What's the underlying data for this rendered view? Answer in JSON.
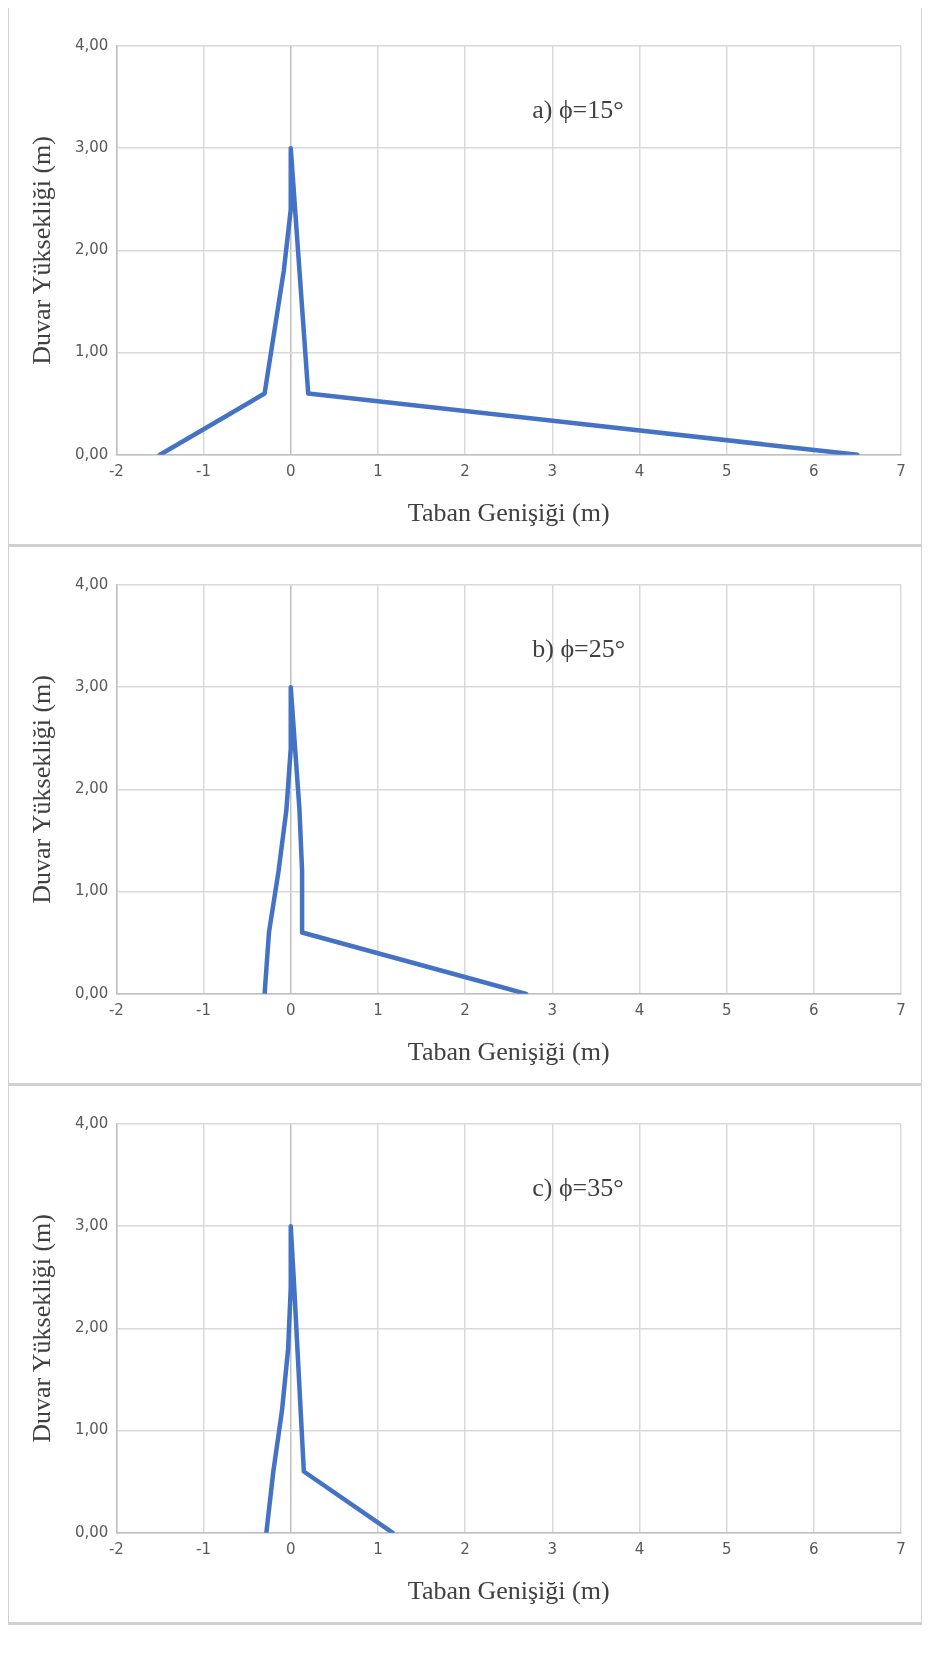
{
  "chart_data": [
    {
      "type": "line",
      "xlabel": "Taban Genişiği (m)",
      "ylabel": "Duvar Yüksekliği (m)",
      "annotations": [
        "a) ϕ=15°"
      ],
      "xlim": [
        -2,
        7
      ],
      "xticks": [
        -2,
        -1,
        0,
        1,
        2,
        3,
        4,
        5,
        6,
        7
      ],
      "ylim": [
        0,
        4
      ],
      "yticks": [
        {
          "value": 0,
          "label": "0,00"
        },
        {
          "value": 1,
          "label": "1,00"
        },
        {
          "value": 2,
          "label": "2,00"
        },
        {
          "value": 3,
          "label": "3,00"
        },
        {
          "value": 4,
          "label": "4,00"
        }
      ],
      "grid": true,
      "legend": false,
      "marker": "none",
      "line_style": "solid",
      "series": [
        {
          "color": "#4472c4",
          "x": [
            -1.5,
            -0.3,
            -0.08,
            0,
            0,
            0.1,
            0.2,
            6.5
          ],
          "values": [
            0,
            0.6,
            1.8,
            2.4,
            3,
            1.8,
            0.6,
            0
          ]
        }
      ]
    },
    {
      "type": "line",
      "xlabel": "Taban Genişiği (m)",
      "ylabel": "Duvar Yüksekliği (m)",
      "annotations": [
        "b) ϕ=25°"
      ],
      "xlim": [
        -2,
        7
      ],
      "xticks": [
        -2,
        -1,
        0,
        1,
        2,
        3,
        4,
        5,
        6,
        7
      ],
      "ylim": [
        0,
        4
      ],
      "yticks": [
        {
          "value": 0,
          "label": "0,00"
        },
        {
          "value": 1,
          "label": "1,00"
        },
        {
          "value": 2,
          "label": "2,00"
        },
        {
          "value": 3,
          "label": "3,00"
        },
        {
          "value": 4,
          "label": "4,00"
        }
      ],
      "grid": true,
      "legend": false,
      "marker": "none",
      "line_style": "solid",
      "series": [
        {
          "color": "#4472c4",
          "x": [
            -0.3,
            -0.25,
            -0.14,
            -0.05,
            0,
            0,
            0.1,
            0.13,
            0.13,
            2.7
          ],
          "values": [
            0,
            0.6,
            1.2,
            1.8,
            2.4,
            3,
            1.8,
            1.2,
            0.6,
            0
          ]
        }
      ]
    },
    {
      "type": "line",
      "xlabel": "Taban Genişiği (m)",
      "ylabel": "Duvar Yüksekliği (m)",
      "annotations": [
        "c) ϕ=35°"
      ],
      "xlim": [
        -2,
        7
      ],
      "xticks": [
        -2,
        -1,
        0,
        1,
        2,
        3,
        4,
        5,
        6,
        7
      ],
      "ylim": [
        0,
        4
      ],
      "yticks": [
        {
          "value": 0,
          "label": "0,00"
        },
        {
          "value": 1,
          "label": "1,00"
        },
        {
          "value": 2,
          "label": "2,00"
        },
        {
          "value": 3,
          "label": "3,00"
        },
        {
          "value": 4,
          "label": "4,00"
        }
      ],
      "grid": true,
      "legend": false,
      "marker": "none",
      "line_style": "solid",
      "series": [
        {
          "color": "#4472c4",
          "x": [
            -0.28,
            -0.2,
            -0.1,
            -0.03,
            0,
            0,
            0.04,
            0.15,
            1.17
          ],
          "values": [
            0,
            0.6,
            1.2,
            1.8,
            2.4,
            3,
            2.4,
            0.6,
            0
          ]
        }
      ]
    }
  ]
}
